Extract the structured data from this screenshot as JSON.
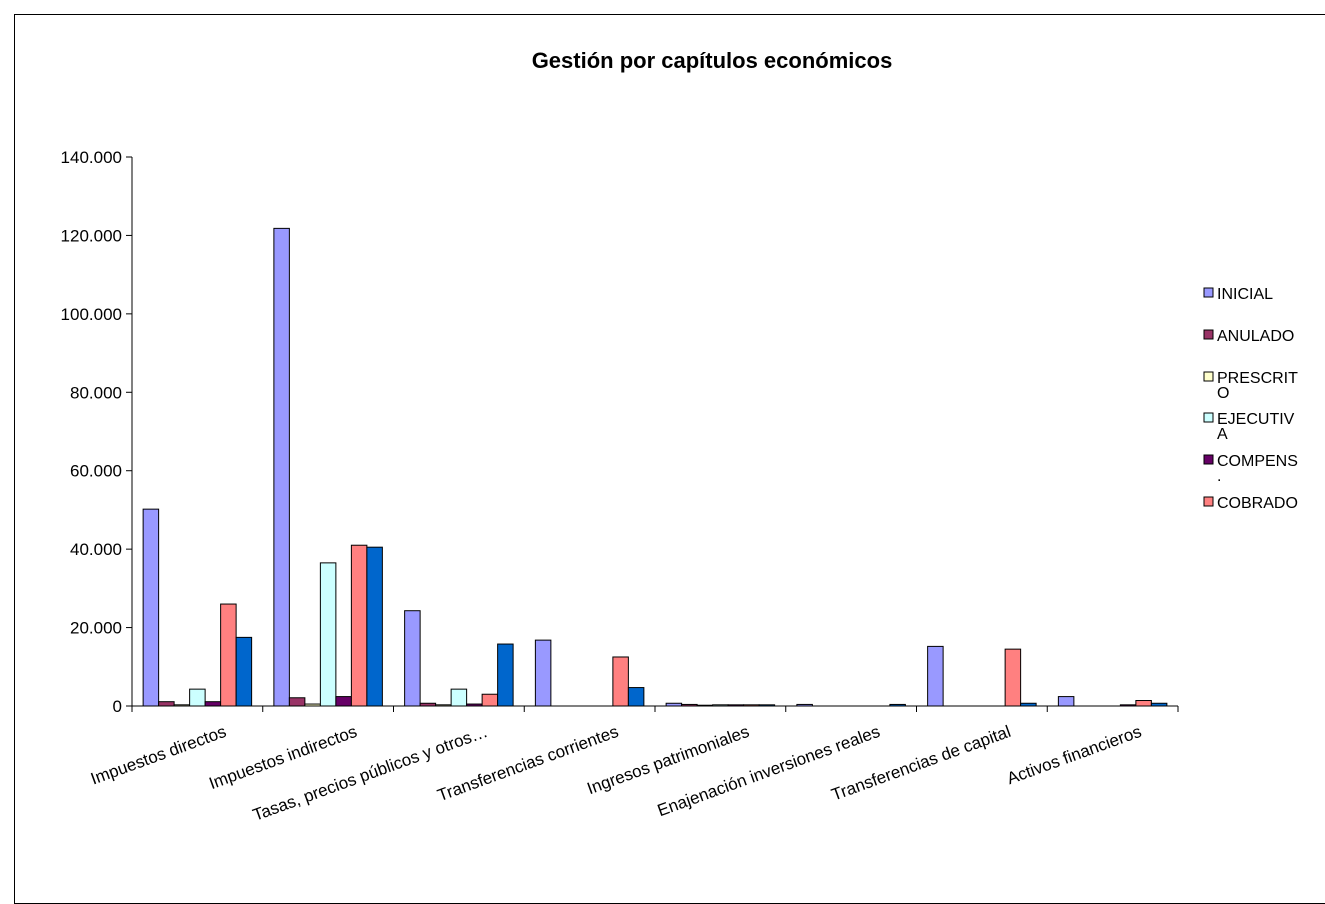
{
  "chart_data": {
    "type": "bar",
    "title": "Gestión por capítulos económicos",
    "xlabel": "",
    "ylabel": "",
    "ylim": [
      0,
      140000
    ],
    "yticks": [
      "0",
      "20.000",
      "40.000",
      "60.000",
      "80.000",
      "100.000",
      "120.000",
      "140.000"
    ],
    "ytick_values": [
      0,
      20000,
      40000,
      60000,
      80000,
      100000,
      120000,
      140000
    ],
    "grid": false,
    "legend_position": "right",
    "categories": [
      "Impuestos directos",
      "Impuestos indirectos",
      "Tasas, precios públicos y otros…",
      "Transferencias corrientes",
      "Ingresos patrimoniales",
      "Enajenación inversiones reales",
      "Transferencias de capital",
      "Activos financieros"
    ],
    "series": [
      {
        "name": "INICIAL",
        "color": "#9999FF",
        "values": [
          50200,
          121800,
          24300,
          16800,
          700,
          400,
          15200,
          2400
        ]
      },
      {
        "name": "ANULADO",
        "color": "#993366",
        "values": [
          1100,
          2100,
          700,
          0,
          400,
          0,
          0,
          0
        ]
      },
      {
        "name": "PRESCRITO",
        "color": "#FFFFCC",
        "values": [
          300,
          500,
          300,
          0,
          200,
          0,
          0,
          0
        ]
      },
      {
        "name": "EJECUTIVA",
        "color": "#CCFFFF",
        "values": [
          4300,
          36500,
          4300,
          0,
          300,
          0,
          0,
          0
        ]
      },
      {
        "name": "COMPENS.",
        "color": "#660066",
        "values": [
          1100,
          2400,
          500,
          0,
          300,
          0,
          0,
          300
        ]
      },
      {
        "name": "COBRADO",
        "color": "#FF8080",
        "values": [
          26000,
          41000,
          3000,
          12500,
          300,
          0,
          14500,
          1400
        ]
      },
      {
        "name": "",
        "color": "#0066CC",
        "values": [
          17500,
          40500,
          15800,
          4700,
          300,
          400,
          700,
          700
        ]
      }
    ],
    "legend_lines": [
      [
        "INICIAL"
      ],
      [
        "ANULADO"
      ],
      [
        "PRESCRIT",
        "O"
      ],
      [
        "EJECUTIV",
        "A"
      ],
      [
        "COMPENS",
        "."
      ],
      [
        "COBRADO"
      ]
    ]
  }
}
